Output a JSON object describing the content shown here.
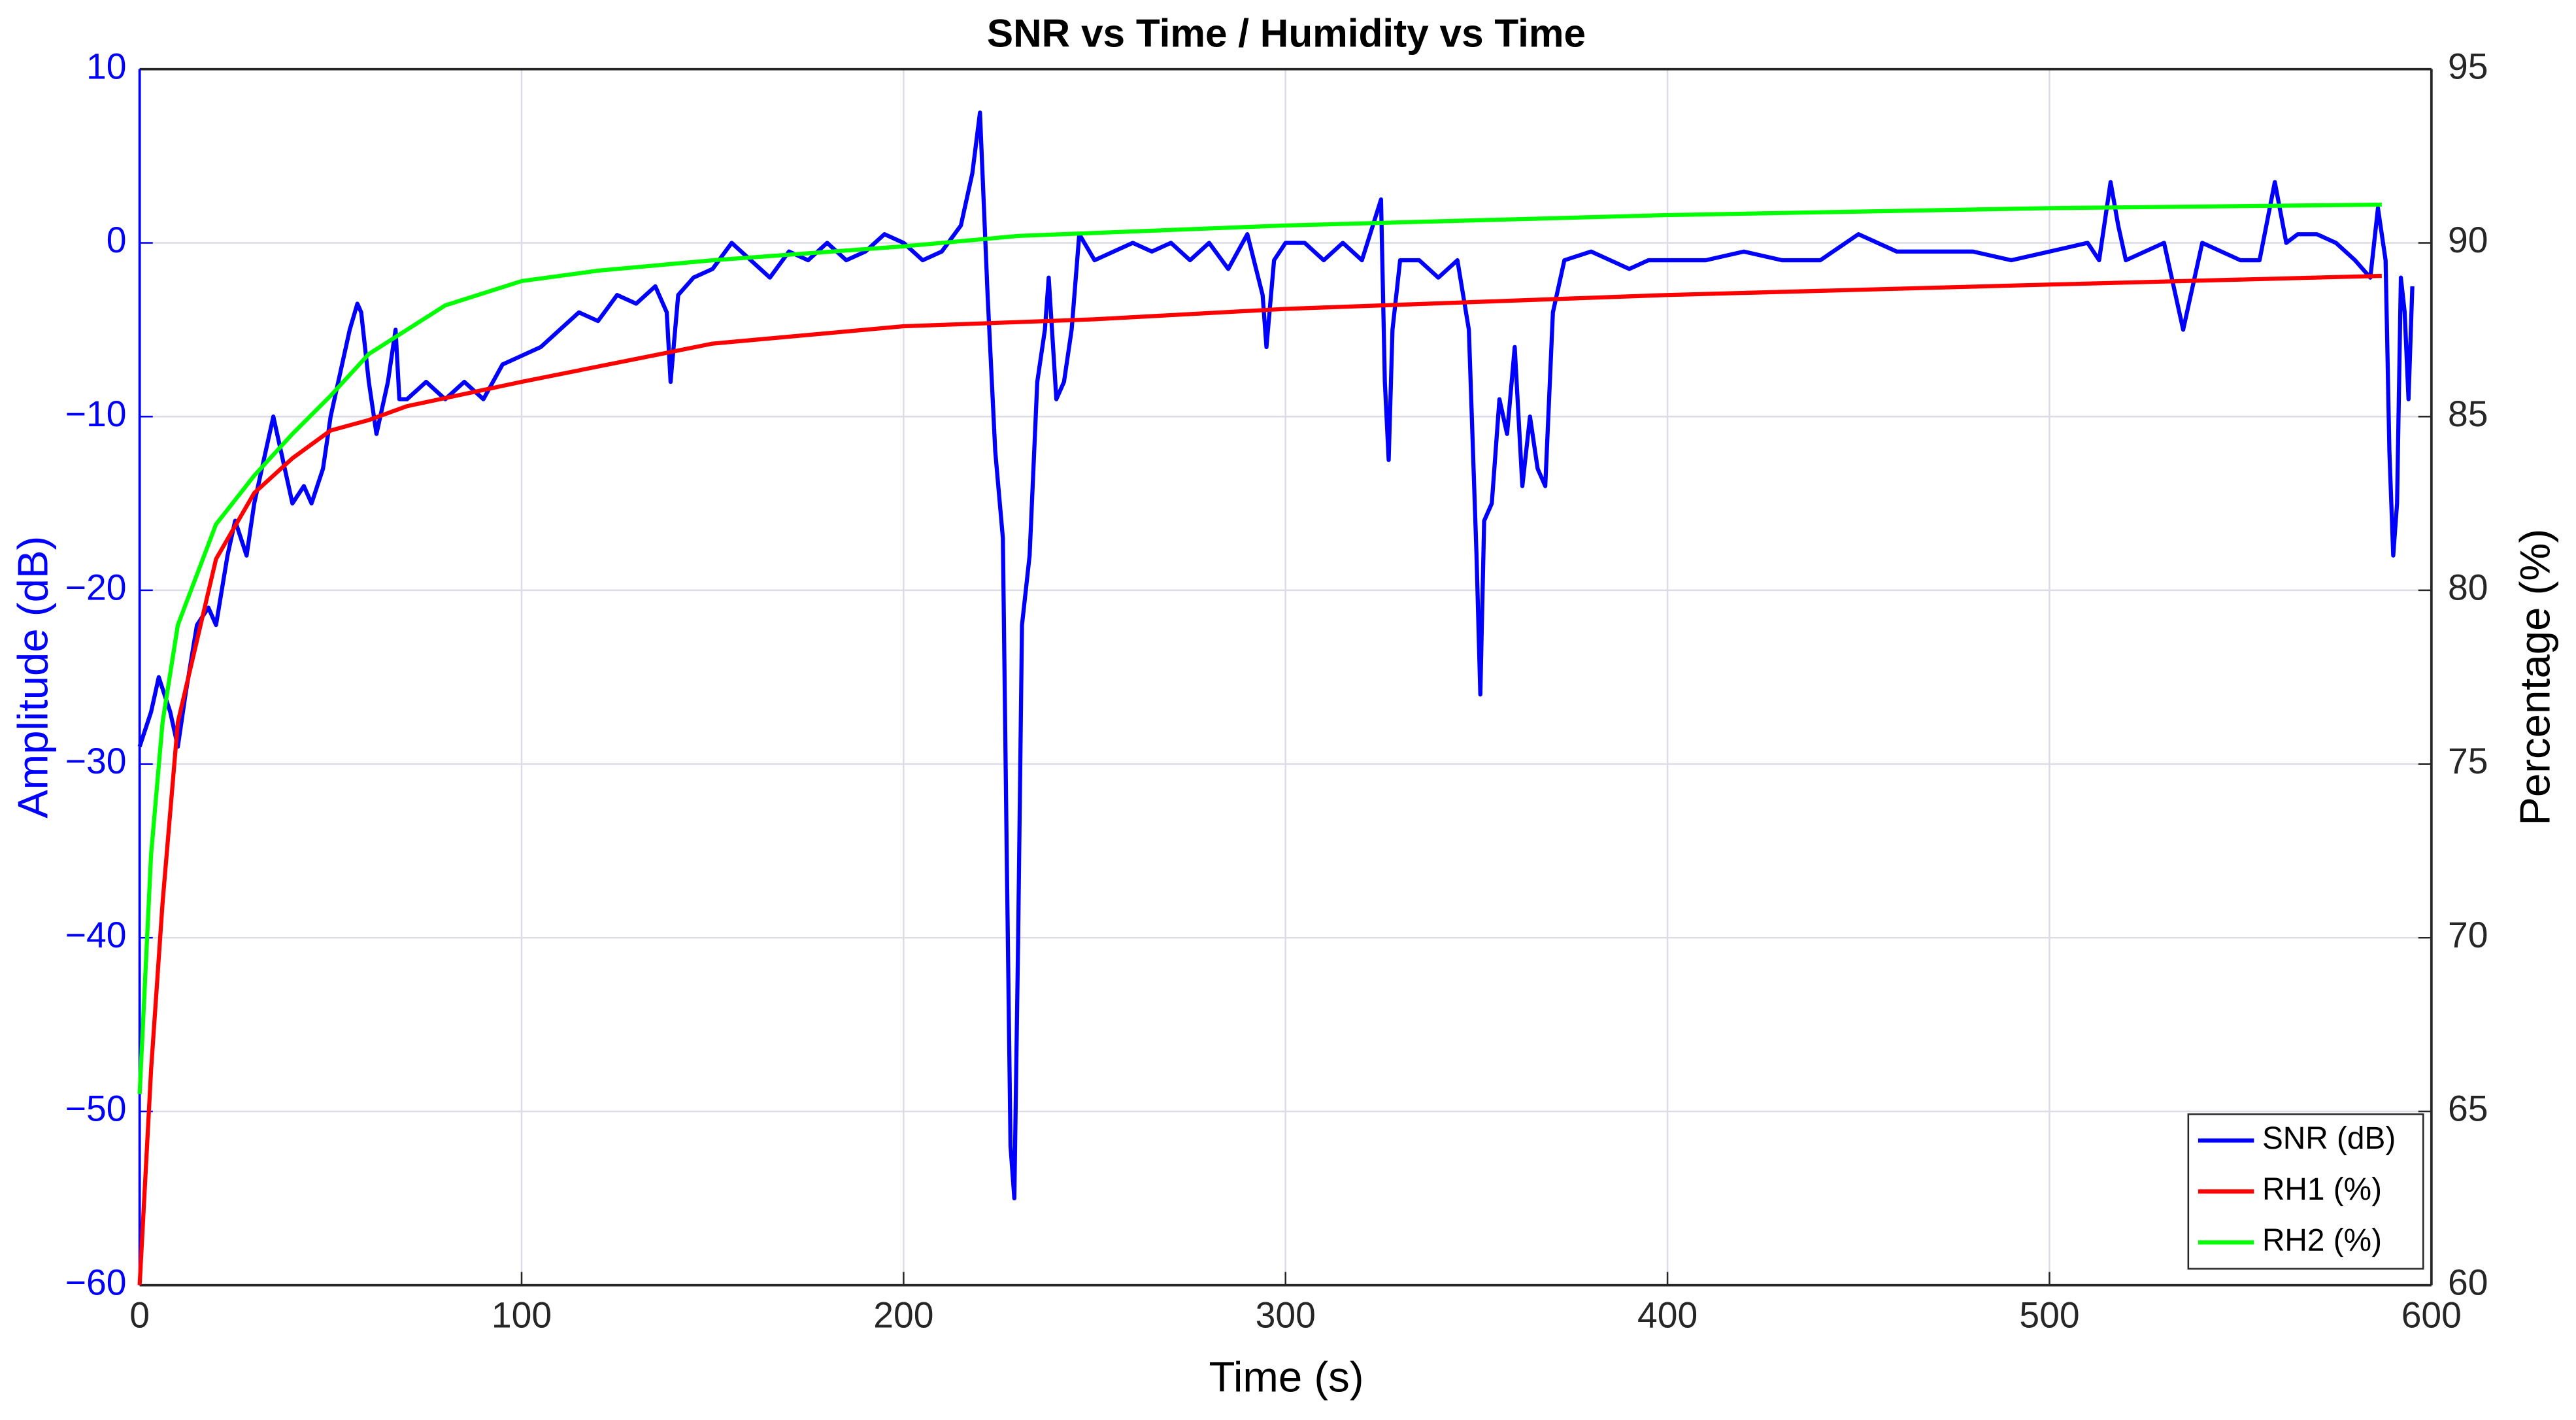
{
  "chart_data": {
    "type": "line",
    "title": "SNR vs Time / Humidity vs Time",
    "xlabel": "Time (s)",
    "ylabel": "Amplitude (dB)",
    "y2label": "Percentage (%)",
    "xlim": [
      0,
      600
    ],
    "xticks": [
      0,
      100,
      200,
      300,
      400,
      500,
      600
    ],
    "ylim": [
      -60,
      10
    ],
    "yticks": [
      {
        "value": -60,
        "label": "−60"
      },
      {
        "value": -50,
        "label": "−50"
      },
      {
        "value": -40,
        "label": "−40"
      },
      {
        "value": -30,
        "label": "−30"
      },
      {
        "value": -20,
        "label": "−20"
      },
      {
        "value": -10,
        "label": "−10"
      },
      0,
      10
    ],
    "y2lim": [
      60,
      95
    ],
    "y2ticks": [
      60,
      65,
      70,
      75,
      80,
      85,
      90,
      95
    ],
    "grid": true,
    "legend": "lower right",
    "series": [
      {
        "name": "SNR (dB)",
        "color": "#0000ff",
        "x": [
          0,
          3,
          5,
          8,
          10,
          12,
          15,
          18,
          20,
          23,
          25,
          28,
          30,
          33,
          35,
          38,
          40,
          43,
          45,
          48,
          50,
          53,
          55,
          57,
          58,
          60,
          62,
          65,
          67,
          68,
          70,
          75,
          80,
          85,
          90,
          95,
          100,
          105,
          110,
          115,
          120,
          125,
          130,
          135,
          138,
          139,
          141,
          145,
          150,
          155,
          160,
          165,
          170,
          175,
          180,
          185,
          190,
          195,
          200,
          205,
          210,
          215,
          218,
          220,
          222,
          224,
          226,
          227,
          228,
          229,
          230,
          231,
          233,
          235,
          237,
          238,
          240,
          242,
          244,
          246,
          250,
          255,
          260,
          265,
          270,
          275,
          280,
          285,
          290,
          294,
          295,
          297,
          300,
          305,
          310,
          315,
          320,
          325,
          326,
          327,
          328,
          330,
          335,
          340,
          345,
          348,
          350,
          351,
          352,
          354,
          356,
          358,
          360,
          362,
          364,
          366,
          368,
          370,
          373,
          380,
          385,
          390,
          395,
          400,
          410,
          420,
          430,
          440,
          450,
          460,
          470,
          480,
          490,
          500,
          510,
          513,
          516,
          518,
          520,
          530,
          535,
          540,
          550,
          555,
          559,
          562,
          565,
          570,
          575,
          580,
          584,
          586,
          588,
          589,
          590,
          591,
          592,
          593,
          594,
          595
        ],
        "values": [
          -29,
          -27,
          -25,
          -27,
          -29,
          -26,
          -22,
          -21,
          -22,
          -18,
          -16,
          -18,
          -15,
          -12,
          -10,
          -13,
          -15,
          -14,
          -15,
          -13,
          -10,
          -7,
          -5,
          -3.5,
          -4,
          -8,
          -11,
          -8,
          -5,
          -9,
          -9,
          -8,
          -9,
          -8,
          -9,
          -7,
          -6.5,
          -6,
          -5,
          -4,
          -4.5,
          -3,
          -3.5,
          -2.5,
          -4,
          -8,
          -3,
          -2,
          -1.5,
          0,
          -1,
          -2,
          -0.5,
          -1,
          0,
          -1,
          -0.5,
          0.5,
          0,
          -1,
          -0.5,
          1,
          4,
          7.5,
          -3,
          -12,
          -17,
          -35,
          -52,
          -55,
          -40,
          -22,
          -18,
          -8,
          -5,
          -2,
          -9,
          -8,
          -5,
          0.5,
          -1,
          -0.5,
          0,
          -0.5,
          0,
          -1,
          0,
          -1.5,
          0.5,
          -3,
          -6,
          -1,
          0,
          0,
          -1,
          0,
          -1,
          2.5,
          -8,
          -12.5,
          -5,
          -1,
          -1,
          -2,
          -1,
          -5,
          -18,
          -26,
          -16,
          -15,
          -9,
          -11,
          -6,
          -14,
          -10,
          -13,
          -14,
          -4,
          -1,
          -0.5,
          -1,
          -1.5,
          -1,
          -1,
          -1,
          -0.5,
          -1,
          -1,
          0.5,
          -0.5,
          -0.5,
          -0.5,
          -1,
          -0.5,
          0,
          -1,
          3.5,
          1,
          -1,
          0,
          -5,
          0,
          -1,
          -1,
          3.5,
          0,
          0.5,
          0.5,
          0,
          -1,
          -2,
          2,
          -1,
          -12,
          -18,
          -15,
          -2,
          -4,
          -9,
          -2.5
        ]
      },
      {
        "name": "RH1 (%)",
        "color": "#ff0000",
        "axis": "y2",
        "x": [
          0,
          3,
          6,
          10,
          20,
          30,
          40,
          50,
          60,
          70,
          100,
          150,
          200,
          250,
          300,
          400,
          500,
          587
        ],
        "values": [
          60,
          66.2,
          71,
          76.2,
          80.9,
          82.8,
          83.8,
          84.6,
          84.9,
          85.3,
          86,
          87.1,
          87.6,
          87.8,
          88.1,
          88.5,
          88.8,
          89.05
        ]
      },
      {
        "name": "RH2 (%)",
        "color": "#00ff00",
        "axis": "y2",
        "x": [
          0,
          3,
          6,
          10,
          20,
          30,
          40,
          50,
          60,
          80,
          100,
          120,
          150,
          200,
          230,
          300,
          400,
          500,
          587
        ],
        "values": [
          65.5,
          72.4,
          76.2,
          79,
          81.9,
          83.3,
          84.5,
          85.6,
          86.8,
          88.2,
          88.9,
          89.2,
          89.5,
          89.9,
          90.2,
          90.5,
          90.8,
          91,
          91.1
        ]
      }
    ]
  }
}
